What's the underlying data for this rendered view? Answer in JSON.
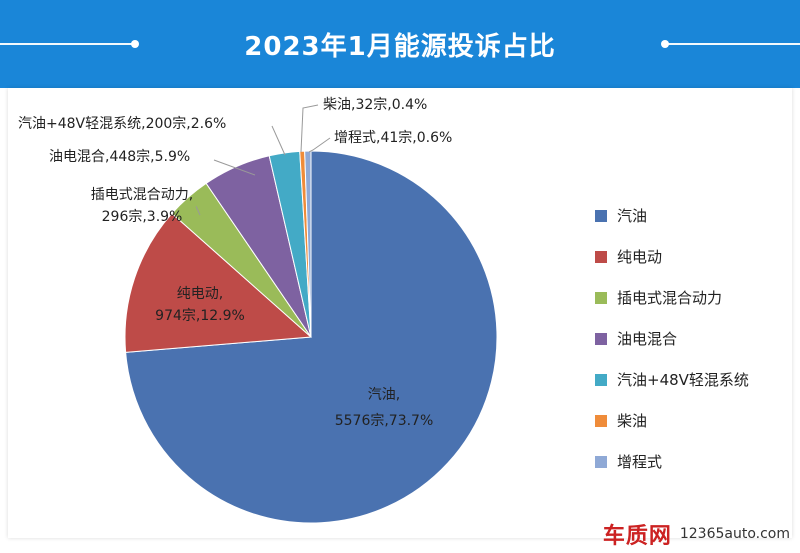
{
  "title": "2023年1月能源投诉占比",
  "colors": {
    "header_bg": "#1a86d8",
    "slices": [
      "#4a72b0",
      "#be4b48",
      "#9abb59",
      "#7e62a1",
      "#43aac6",
      "#ef8c3a",
      "#8fa9d6"
    ]
  },
  "chart_data": {
    "type": "pie",
    "title": "2023年1月能源投诉占比",
    "legend_position": "right",
    "slices": [
      {
        "name": "汽油",
        "count": 5576,
        "percent": 73.7,
        "label": "汽油,\n5576宗,73.7%"
      },
      {
        "name": "纯电动",
        "count": 974,
        "percent": 12.9,
        "label": "纯电动,\n974宗,12.9%"
      },
      {
        "name": "插电式混合动力",
        "count": 296,
        "percent": 3.9,
        "label": "插电式混合动力,\n296宗,3.9%"
      },
      {
        "name": "油电混合",
        "count": 448,
        "percent": 5.9,
        "label": "油电混合,448宗,5.9%"
      },
      {
        "name": "汽油+48V轻混系统",
        "count": 200,
        "percent": 2.6,
        "label": "汽油+48V轻混系统,200宗,2.6%"
      },
      {
        "name": "柴油",
        "count": 32,
        "percent": 0.4,
        "label": "柴油,32宗,0.4%"
      },
      {
        "name": "增程式",
        "count": 41,
        "percent": 0.6,
        "label": "增程式,41宗,0.6%"
      }
    ]
  },
  "watermark": {
    "logo_text": "车质网",
    "url": "12365auto.com"
  }
}
